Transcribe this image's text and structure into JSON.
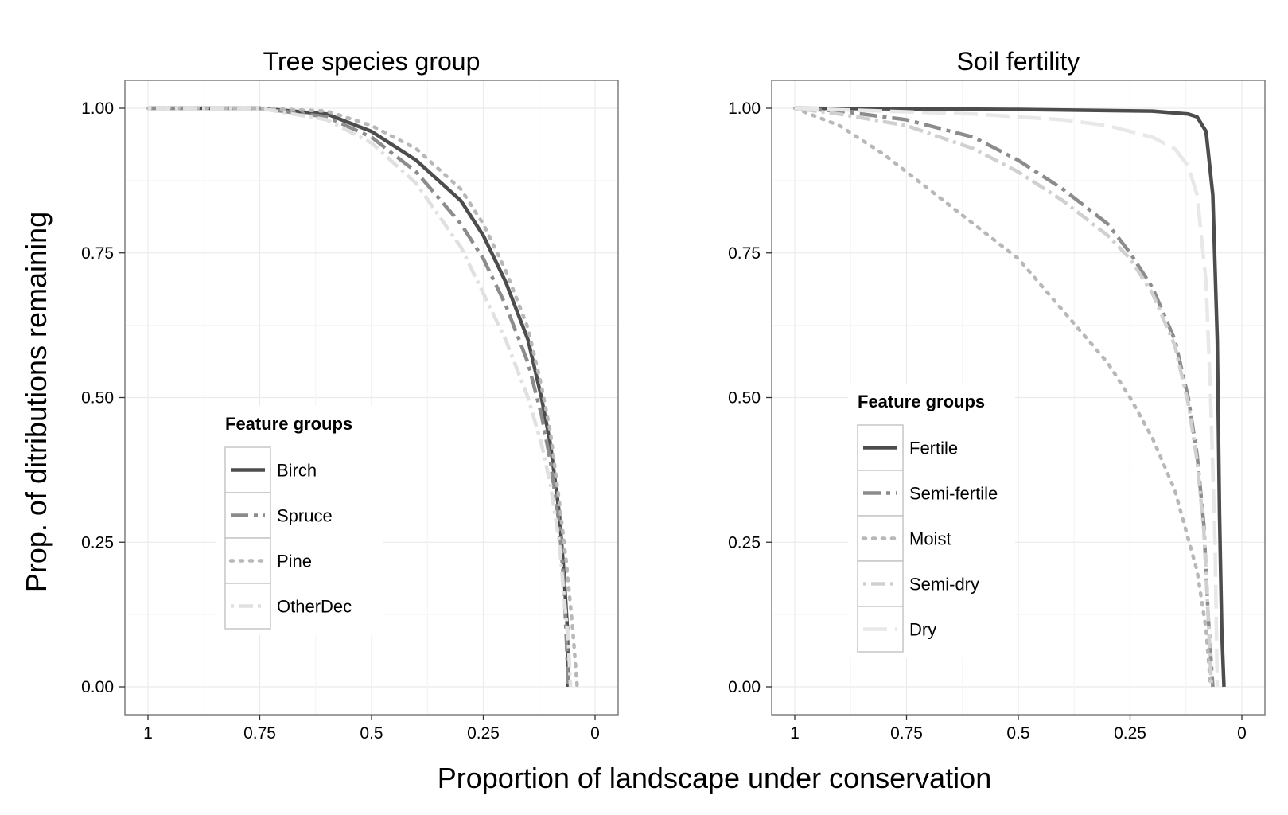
{
  "figure": {
    "xlabel": "Proportion of landscape under conservation",
    "ylabel": "Prop. of ditributions remaining"
  },
  "chart_data": [
    {
      "type": "line",
      "title": "Tree species group",
      "xlabel": "Proportion of landscape under conservation",
      "ylabel": "Prop. of ditributions remaining",
      "x_reversed": true,
      "xlim": [
        1.0,
        0.0
      ],
      "ylim": [
        0.0,
        1.0
      ],
      "x_ticks": [
        "1",
        "0.75",
        "0.5",
        "0.25",
        "0"
      ],
      "y_ticks": [
        "0.00",
        "0.25",
        "0.50",
        "0.75",
        "1.00"
      ],
      "grid": true,
      "legend": {
        "title": "Feature groups",
        "position": "lower-left"
      },
      "series": [
        {
          "name": "Birch",
          "color": "#4d4d4d",
          "style": "solid",
          "x": [
            1.0,
            0.75,
            0.6,
            0.5,
            0.4,
            0.3,
            0.25,
            0.2,
            0.15,
            0.12,
            0.1,
            0.08,
            0.07,
            0.062,
            0.06
          ],
          "y": [
            1.0,
            1.0,
            0.99,
            0.96,
            0.91,
            0.84,
            0.78,
            0.7,
            0.6,
            0.5,
            0.42,
            0.3,
            0.2,
            0.1,
            0.0
          ]
        },
        {
          "name": "Spruce",
          "color": "#8c8c8c",
          "style": "longdash-dot",
          "x": [
            1.0,
            0.75,
            0.6,
            0.5,
            0.4,
            0.3,
            0.25,
            0.2,
            0.15,
            0.12,
            0.1,
            0.08,
            0.07,
            0.064,
            0.06
          ],
          "y": [
            1.0,
            1.0,
            0.985,
            0.95,
            0.89,
            0.8,
            0.74,
            0.66,
            0.56,
            0.47,
            0.39,
            0.28,
            0.18,
            0.08,
            0.0
          ]
        },
        {
          "name": "Pine",
          "color": "#b8b8b8",
          "style": "dotted",
          "x": [
            1.0,
            0.75,
            0.6,
            0.5,
            0.4,
            0.3,
            0.25,
            0.2,
            0.15,
            0.12,
            0.1,
            0.08,
            0.065,
            0.05,
            0.04
          ],
          "y": [
            1.0,
            1.0,
            0.995,
            0.97,
            0.93,
            0.86,
            0.8,
            0.72,
            0.62,
            0.52,
            0.44,
            0.32,
            0.22,
            0.1,
            0.0
          ]
        },
        {
          "name": "OtherDec",
          "color": "#e0e0e0",
          "style": "dash-dot",
          "x": [
            1.0,
            0.75,
            0.6,
            0.5,
            0.4,
            0.3,
            0.25,
            0.2,
            0.15,
            0.12,
            0.1,
            0.08,
            0.07,
            0.06,
            0.055
          ],
          "y": [
            1.0,
            1.0,
            0.98,
            0.94,
            0.87,
            0.76,
            0.68,
            0.6,
            0.5,
            0.42,
            0.35,
            0.25,
            0.16,
            0.08,
            0.0
          ]
        }
      ]
    },
    {
      "type": "line",
      "title": "Soil fertility",
      "xlabel": "Proportion of landscape under conservation",
      "ylabel": "Prop. of ditributions remaining",
      "x_reversed": true,
      "xlim": [
        1.0,
        0.0
      ],
      "ylim": [
        0.0,
        1.0
      ],
      "x_ticks": [
        "1",
        "0.75",
        "0.5",
        "0.25",
        "0"
      ],
      "y_ticks": [
        "0.00",
        "0.25",
        "0.50",
        "0.75",
        "1.00"
      ],
      "grid": true,
      "legend": {
        "title": "Feature groups",
        "position": "lower-left"
      },
      "series": [
        {
          "name": "Fertile",
          "color": "#4d4d4d",
          "style": "solid",
          "x": [
            1.0,
            0.5,
            0.2,
            0.12,
            0.1,
            0.08,
            0.065,
            0.055,
            0.05,
            0.045,
            0.04
          ],
          "y": [
            1.0,
            0.998,
            0.995,
            0.99,
            0.985,
            0.96,
            0.85,
            0.6,
            0.3,
            0.1,
            0.0
          ]
        },
        {
          "name": "Semi-fertile",
          "color": "#8c8c8c",
          "style": "longdash-dot",
          "x": [
            1.0,
            0.9,
            0.75,
            0.6,
            0.5,
            0.4,
            0.3,
            0.25,
            0.2,
            0.15,
            0.12,
            0.1,
            0.085,
            0.075,
            0.065
          ],
          "y": [
            1.0,
            0.995,
            0.98,
            0.95,
            0.91,
            0.86,
            0.8,
            0.75,
            0.69,
            0.6,
            0.5,
            0.4,
            0.28,
            0.12,
            0.0
          ]
        },
        {
          "name": "Moist",
          "color": "#b8b8b8",
          "style": "dotted",
          "x": [
            1.0,
            0.9,
            0.8,
            0.7,
            0.6,
            0.5,
            0.4,
            0.3,
            0.25,
            0.2,
            0.15,
            0.1,
            0.08,
            0.07
          ],
          "y": [
            1.0,
            0.97,
            0.92,
            0.86,
            0.8,
            0.74,
            0.65,
            0.56,
            0.5,
            0.43,
            0.34,
            0.2,
            0.1,
            0.0
          ]
        },
        {
          "name": "Semi-dry",
          "color": "#d0d0d0",
          "style": "dash-dot",
          "x": [
            1.0,
            0.9,
            0.75,
            0.6,
            0.5,
            0.4,
            0.3,
            0.25,
            0.2,
            0.15,
            0.12,
            0.1,
            0.085,
            0.075,
            0.068
          ],
          "y": [
            1.0,
            0.99,
            0.97,
            0.93,
            0.89,
            0.84,
            0.78,
            0.74,
            0.68,
            0.59,
            0.49,
            0.39,
            0.27,
            0.12,
            0.0
          ]
        },
        {
          "name": "Dry",
          "color": "#e8e8e8",
          "style": "longdash",
          "x": [
            1.0,
            0.8,
            0.6,
            0.4,
            0.3,
            0.2,
            0.15,
            0.12,
            0.1,
            0.08,
            0.07,
            0.06,
            0.055
          ],
          "y": [
            1.0,
            0.995,
            0.99,
            0.98,
            0.97,
            0.95,
            0.93,
            0.9,
            0.85,
            0.7,
            0.5,
            0.25,
            0.0
          ]
        }
      ]
    }
  ]
}
